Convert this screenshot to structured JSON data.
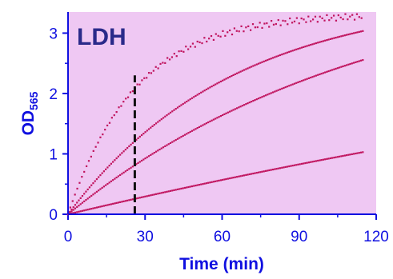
{
  "chart_data": {
    "type": "scatter",
    "panel_label": "LDH",
    "xlabel": "Time (min)",
    "ylabel_main": "OD",
    "ylabel_sub": "565",
    "xlim": [
      0,
      120
    ],
    "ylim": [
      0,
      3.35
    ],
    "xticks": [
      0,
      30,
      60,
      90,
      120
    ],
    "yticks": [
      0,
      1,
      2,
      3
    ],
    "marker_time": 26,
    "marker_top": 2.3,
    "colors": {
      "plot_bg": "#efc8f3",
      "series": "#c0145e",
      "axes": "#1010e0",
      "marker": "#111111"
    },
    "series": [
      {
        "plateau": 3.32,
        "k": 0.038,
        "x_end": 115,
        "step": 0.9,
        "scatter": 0.05
      },
      {
        "plateau": 3.65,
        "k": 0.0155,
        "x_end": 115,
        "step": 0.7,
        "scatter": 0.0
      },
      {
        "plateau": 4.1,
        "k": 0.0085,
        "x_end": 115,
        "step": 0.7,
        "scatter": 0.0
      },
      {
        "plateau": 4.8,
        "k": 0.0021,
        "x_end": 115,
        "step": 0.7,
        "scatter": 0.0
      }
    ]
  }
}
